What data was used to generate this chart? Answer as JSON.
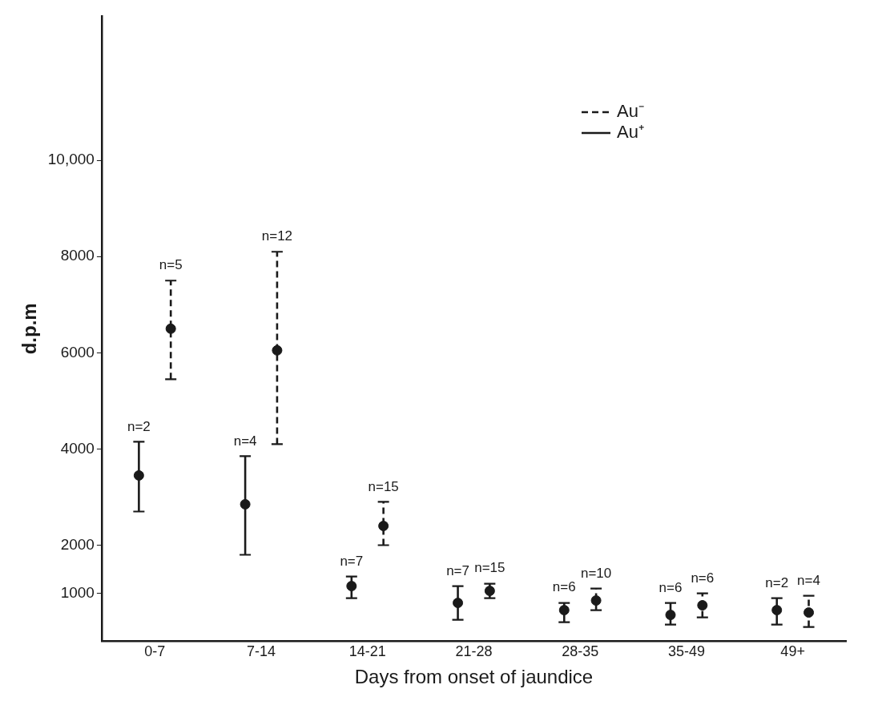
{
  "chart_data": {
    "type": "scatter",
    "xlabel": "Days from onset of jaundice",
    "ylabel": "d.p.m",
    "categories": [
      "0-7",
      "7-14",
      "14-21",
      "21-28",
      "28-35",
      "35-49",
      "49+"
    ],
    "series": [
      {
        "name": "Au⁻",
        "color": "#1a1a1a",
        "line_style": "dashed",
        "values": [
          6500,
          6050,
          2400,
          1050,
          850,
          750,
          600
        ],
        "errors": [
          [
            5450,
            7500
          ],
          [
            4100,
            8100
          ],
          [
            2000,
            2900
          ],
          [
            900,
            1200
          ],
          [
            650,
            1100
          ],
          [
            500,
            1000
          ],
          [
            300,
            950
          ]
        ]
      },
      {
        "name": "Au⁺",
        "color": "#1a1a1a",
        "line_style": "solid",
        "values": [
          3450,
          2850,
          1150,
          800,
          650,
          550,
          650
        ],
        "errors": [
          [
            2700,
            4150
          ],
          [
            1800,
            3850
          ],
          [
            900,
            1350
          ],
          [
            450,
            1150
          ],
          [
            400,
            800
          ],
          [
            350,
            800
          ],
          [
            350,
            900
          ]
        ]
      }
    ],
    "ylim": [
      0,
      13000
    ],
    "yticks": [
      1000,
      2000,
      4000,
      6000,
      8000,
      {
        "value": 10000,
        "label": "10,000"
      }
    ],
    "grid": false,
    "legend": "top right",
    "marker": "circle",
    "annotations": [
      "n=5",
      "n=2",
      "n=12",
      "n=4",
      "n=15",
      "n=7",
      "n=15",
      "n=7",
      "n=10",
      "n=6",
      "n=6",
      "n=6",
      "n=4",
      "n=2"
    ]
  }
}
